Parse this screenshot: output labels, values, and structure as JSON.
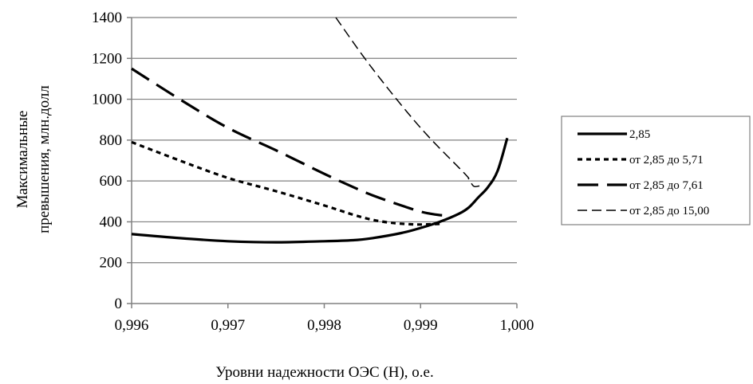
{
  "chart_data": {
    "type": "line",
    "xlabel": "Уровни надежности ОЭС (Н), о.е.",
    "ylabel_lines": [
      "Максимальные",
      "превышения, млн.долл"
    ],
    "xlim": [
      0.996,
      1.0
    ],
    "ylim": [
      0,
      1400
    ],
    "x_ticks": [
      0.996,
      0.997,
      0.998,
      0.999,
      1.0
    ],
    "x_tick_labels": [
      "0,996",
      "0,997",
      "0,998",
      "0,999",
      "1,000"
    ],
    "y_ticks": [
      0,
      200,
      400,
      600,
      800,
      1000,
      1200,
      1400
    ],
    "y_tick_labels": [
      "0",
      "200",
      "400",
      "600",
      "800",
      "1000",
      "1200",
      "1400"
    ],
    "grid": "horizontal",
    "legend_position": "right",
    "series": [
      {
        "name": "2,85",
        "style": "solid-thick",
        "x": [
          0.996,
          0.9965,
          0.997,
          0.9975,
          0.998,
          0.9983,
          0.9985,
          0.9988,
          0.999,
          0.9992,
          0.9994,
          0.9995,
          0.9996,
          0.9997,
          0.9998,
          0.9999
        ],
        "y": [
          340,
          320,
          305,
          300,
          305,
          310,
          320,
          345,
          370,
          400,
          440,
          470,
          520,
          570,
          650,
          810
        ]
      },
      {
        "name": "от 2,85 до 5,71",
        "style": "short-dash",
        "x": [
          0.996,
          0.9965,
          0.997,
          0.9975,
          0.998,
          0.9983,
          0.9985,
          0.9987,
          0.9989,
          0.999,
          0.9991,
          0.9992
        ],
        "y": [
          790,
          700,
          615,
          550,
          480,
          435,
          410,
          395,
          388,
          387,
          388,
          390
        ]
      },
      {
        "name": "от 2,85 до 7,61",
        "style": "long-dash",
        "x": [
          0.996,
          0.9965,
          0.997,
          0.9975,
          0.998,
          0.9983,
          0.9985,
          0.9988,
          0.999,
          0.9991,
          0.9992,
          0.9993
        ],
        "y": [
          1150,
          1000,
          860,
          750,
          635,
          570,
          530,
          480,
          450,
          440,
          433,
          430
        ]
      },
      {
        "name": "от 2,85 до 15,00",
        "style": "thin-dash",
        "x": [
          0.99812,
          0.9985,
          0.999,
          0.99945,
          0.9995,
          0.99955,
          0.9996,
          0.99965
        ],
        "y": [
          1400,
          1150,
          860,
          640,
          610,
          575,
          575,
          580
        ]
      }
    ]
  }
}
